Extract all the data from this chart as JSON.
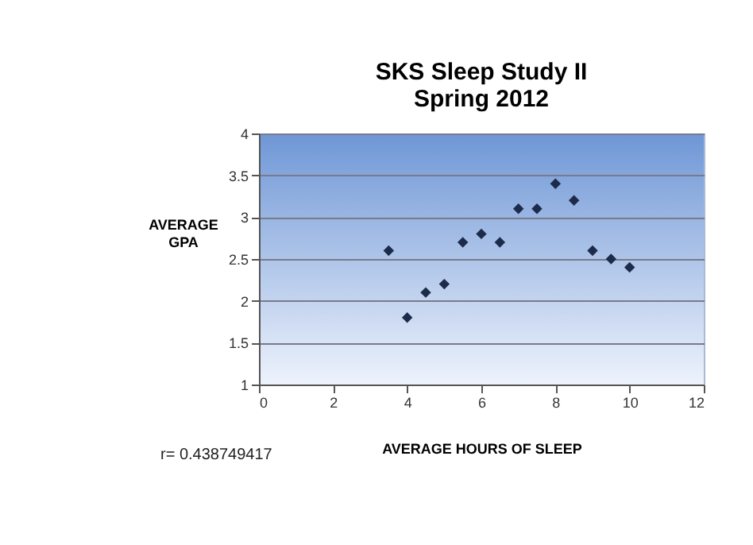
{
  "chart_data": {
    "type": "scatter",
    "title": "SKS Sleep Study II\nSpring 2012",
    "xlabel": "AVERAGE HOURS OF SLEEP",
    "ylabel": "AVERAGE GPA",
    "x": [
      3.5,
      4,
      4.5,
      5,
      5.5,
      6,
      6.5,
      7,
      7.5,
      8,
      8.5,
      9,
      9.5,
      10
    ],
    "series": [
      {
        "color": "#1c2b4a",
        "values": [
          2.6,
          1.8,
          2.1,
          2.2,
          2.7,
          2.8,
          2.7,
          3.1,
          3.1,
          3.4,
          3.2,
          2.6,
          2.5,
          2.4
        ]
      }
    ],
    "xlim": [
      0,
      12
    ],
    "xticks": [
      0,
      2,
      4,
      6,
      8,
      10,
      12
    ],
    "ylim": [
      1,
      4
    ],
    "yticks": [
      1,
      1.5,
      2,
      2.5,
      3,
      3.5,
      4
    ],
    "grid": "y",
    "marker": "diamond",
    "annotations": [
      "r=  0.438749417"
    ]
  }
}
